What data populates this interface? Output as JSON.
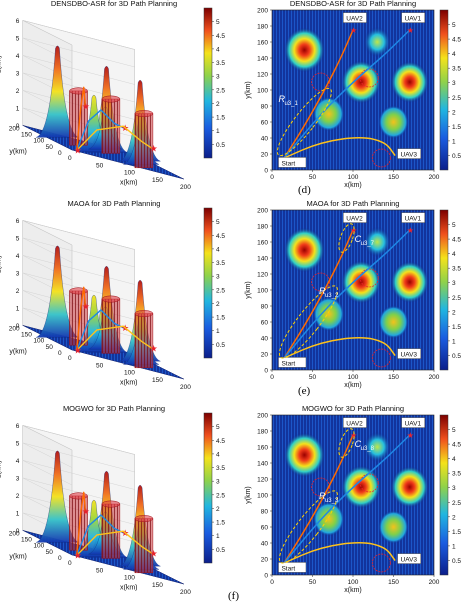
{
  "figure": {
    "subfigure_labels": [
      "(d)",
      "(e)",
      "(f)"
    ]
  },
  "colors": {
    "map_low": "#0b1e8a",
    "map_mid": "#2fb0e6",
    "map_high": "#f4e21b",
    "map_peak": "#7c0000",
    "path_orange": "#ff6a00",
    "path_blue": "#1e88e5",
    "path_yellow": "#ffc21a",
    "target_red": "#e8222c",
    "threat_circle": "#e8222c",
    "ellipse_yellow": "#ffd200"
  },
  "chart_data": [
    {
      "type": "surface3d",
      "title": "DENSDBO-ASR for 3D Path Planning",
      "zlabel": "z(km)",
      "ylabel": "y(km)",
      "xlabel": "x(km)",
      "zticks": [
        "0",
        "1",
        "2",
        "3",
        "4",
        "5",
        "6"
      ],
      "yticks": [
        "200",
        "150",
        "100",
        "50",
        "0"
      ],
      "xticks": [
        "0",
        "50",
        "100",
        "150",
        "200"
      ],
      "colorbar": {
        "ticks": [
          "5",
          "4.5",
          "4",
          "3.5",
          "3",
          "2.5",
          "2",
          "1.5",
          "1",
          "0.5"
        ],
        "range": [
          0,
          5.5
        ]
      }
    },
    {
      "type": "heatmap",
      "title": "DENSDBO-ASR for 3D Path Planning",
      "xlabel": "x(km)",
      "ylabel": "y(km)",
      "xlim": [
        0,
        200
      ],
      "ylim": [
        0,
        200
      ],
      "xticks": [
        "0",
        "50",
        "100",
        "150",
        "200"
      ],
      "yticks": [
        "200",
        "180",
        "160",
        "140",
        "120",
        "100",
        "80",
        "60",
        "40",
        "20",
        "0"
      ],
      "colorbar": {
        "ticks": [
          "5",
          "4.5",
          "4",
          "3.5",
          "3",
          "2.5",
          "2",
          "1.5",
          "1",
          "0.5"
        ],
        "range": [
          0,
          5.5
        ]
      },
      "labels": [
        "UAV2",
        "UAV1",
        "UAV3",
        "Start"
      ],
      "annotation": "R",
      "annotation_sub": "u3_1"
    },
    {
      "type": "surface3d",
      "title": "MAOA for 3D Path Planning",
      "zlabel": "z(km)",
      "ylabel": "y(km)",
      "xlabel": "x(km)",
      "zticks": [
        "0",
        "1",
        "2",
        "3",
        "4",
        "5",
        "6"
      ],
      "yticks": [
        "200",
        "150",
        "100",
        "50",
        "0"
      ],
      "xticks": [
        "0",
        "50",
        "100",
        "150",
        "200"
      ],
      "colorbar": {
        "ticks": [
          "5",
          "4.5",
          "4",
          "3.5",
          "3",
          "2.5",
          "2",
          "1.5",
          "1",
          "0.5"
        ],
        "range": [
          0,
          5.5
        ]
      }
    },
    {
      "type": "heatmap",
      "title": "MAOA for 3D Path Planning",
      "xlabel": "x(km)",
      "ylabel": "y(km)",
      "xlim": [
        0,
        200
      ],
      "ylim": [
        0,
        200
      ],
      "xticks": [
        "0",
        "50",
        "100",
        "150",
        "200"
      ],
      "yticks": [
        "200",
        "180",
        "160",
        "140",
        "120",
        "100",
        "80",
        "60",
        "40",
        "20",
        "0"
      ],
      "colorbar": {
        "ticks": [
          "5",
          "4.5",
          "4",
          "3.5",
          "3",
          "2.5",
          "2",
          "1.5",
          "1",
          "0.5"
        ],
        "range": [
          0,
          5.5
        ]
      },
      "labels": [
        "UAV2",
        "UAV1",
        "UAV3",
        "Start"
      ],
      "annotations": [
        {
          "base": "C",
          "sub": "u3_7"
        },
        {
          "base": "R",
          "sub": "u3_2"
        }
      ]
    },
    {
      "type": "surface3d",
      "title": "MOGWO for 3D Path Planning",
      "zlabel": "z(km)",
      "ylabel": "y(km)",
      "xlabel": "x(km)",
      "zticks": [
        "0",
        "1",
        "2",
        "3",
        "4",
        "5",
        "6"
      ],
      "yticks": [
        "200",
        "150",
        "100",
        "50",
        "0"
      ],
      "xticks": [
        "0",
        "50",
        "100",
        "150",
        "200"
      ],
      "colorbar": {
        "ticks": [
          "5",
          "4.5",
          "4",
          "3.5",
          "3",
          "2.5",
          "2",
          "1.5",
          "1",
          "0.5"
        ],
        "range": [
          0,
          5.5
        ]
      }
    },
    {
      "type": "heatmap",
      "title": "MOGWO for 3D Path Planning",
      "xlabel": "x(km)",
      "ylabel": "y(km)",
      "xlim": [
        0,
        200
      ],
      "ylim": [
        0,
        200
      ],
      "xticks": [
        "0",
        "50",
        "100",
        "150",
        "200"
      ],
      "yticks": [
        "200",
        "180",
        "160",
        "140",
        "120",
        "100",
        "80",
        "60",
        "40",
        "20",
        "0"
      ],
      "colorbar": {
        "ticks": [
          "5",
          "4.5",
          "4",
          "3.5",
          "3",
          "2.5",
          "2",
          "1.5",
          "1",
          "0.5"
        ],
        "range": [
          0,
          5.5
        ]
      },
      "labels": [
        "UAV2",
        "UAV1",
        "UAV3",
        "Start"
      ],
      "annotations": [
        {
          "base": "C",
          "sub": "u3_8"
        },
        {
          "base": "R",
          "sub": "u3_3"
        }
      ]
    }
  ],
  "terrain": {
    "peaks": [
      {
        "x": 40,
        "y": 150,
        "h": 5.2
      },
      {
        "x": 110,
        "y": 110,
        "h": 4.9
      },
      {
        "x": 170,
        "y": 110,
        "h": 4.6
      },
      {
        "x": 70,
        "y": 70,
        "h": 3.2
      },
      {
        "x": 150,
        "y": 60,
        "h": 3.0
      },
      {
        "x": 130,
        "y": 160,
        "h": 2.4
      }
    ],
    "threats": [
      {
        "x": 60,
        "y": 110
      },
      {
        "x": 120,
        "y": 115
      },
      {
        "x": 135,
        "y": 15
      }
    ]
  },
  "paths": {
    "start": {
      "x": 15,
      "y": 15
    },
    "uav1": [
      [
        15,
        15
      ],
      [
        60,
        70
      ],
      [
        100,
        110
      ],
      [
        140,
        145
      ],
      [
        170,
        175
      ]
    ],
    "uav2": [
      [
        15,
        15
      ],
      [
        40,
        55
      ],
      [
        65,
        100
      ],
      [
        85,
        140
      ],
      [
        100,
        175
      ]
    ],
    "uav3": [
      [
        15,
        15
      ],
      [
        60,
        35
      ],
      [
        110,
        42
      ],
      [
        140,
        35
      ],
      [
        152,
        18
      ]
    ]
  }
}
